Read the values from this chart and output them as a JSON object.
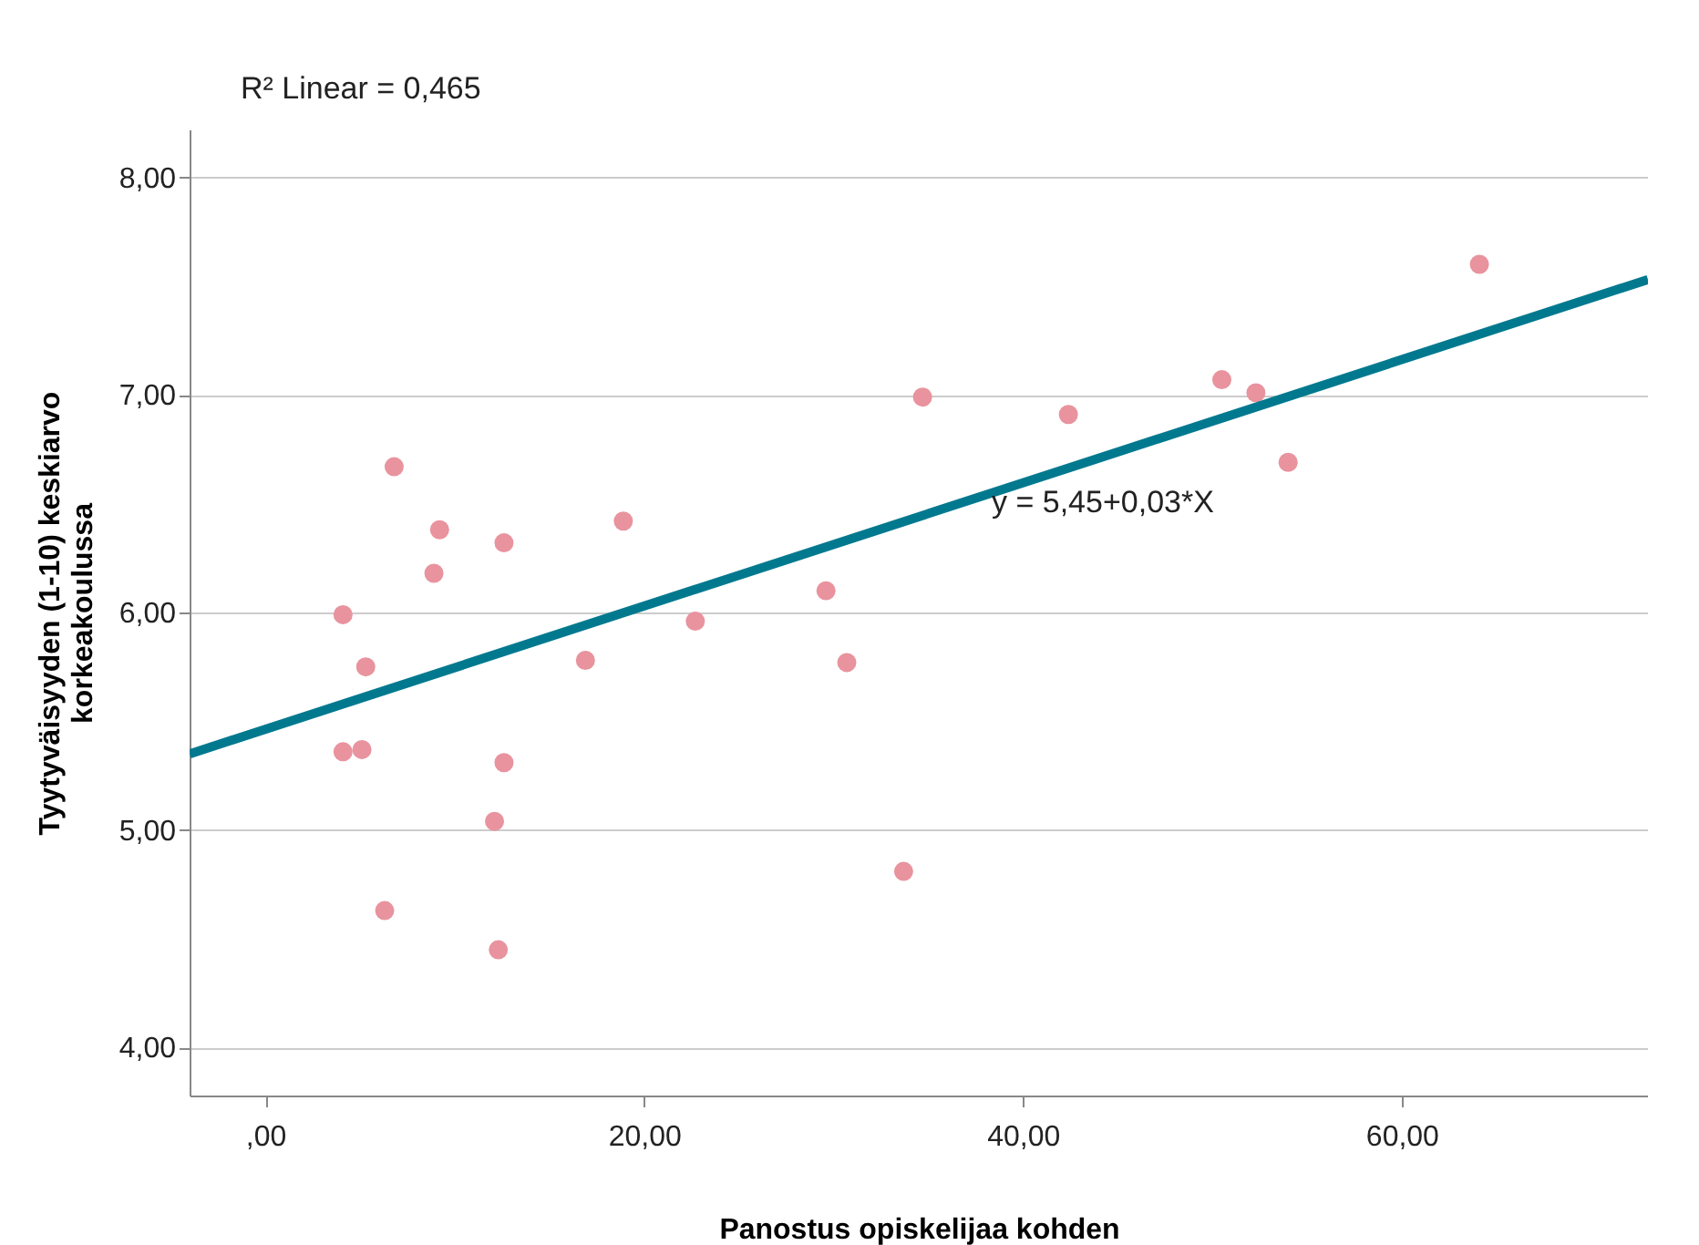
{
  "chart_data": {
    "type": "scatter",
    "xlabel": "Panostus opiskelijaa kohden",
    "ylabel": "Tyytyväisyyden (1-10) keskiarvo korkeakoulussa",
    "xlim": [
      -4,
      73
    ],
    "ylim": [
      3.78,
      8.22
    ],
    "xticks": [
      {
        "value": 0,
        "label": ",00"
      },
      {
        "value": 20,
        "label": "20,00"
      },
      {
        "value": 40,
        "label": "40,00"
      },
      {
        "value": 60,
        "label": "60,00"
      }
    ],
    "yticks": [
      {
        "value": 4,
        "label": "4,00"
      },
      {
        "value": 5,
        "label": "5,00"
      },
      {
        "value": 6,
        "label": "6,00"
      },
      {
        "value": 7,
        "label": "7,00"
      },
      {
        "value": 8,
        "label": "8,00"
      }
    ],
    "grid": "y",
    "series": [
      {
        "color": "#e8939e",
        "marker": "circle",
        "x": [
          64.1,
          34.7,
          42.4,
          50.5,
          52.3,
          54.0,
          29.6,
          30.7,
          33.7,
          22.7,
          18.9,
          16.9,
          12.6,
          12.6,
          12.1,
          12.3,
          9.2,
          8.9,
          6.8,
          6.3,
          5.3,
          5.1,
          4.1,
          4.1
        ],
        "values": [
          7.6,
          6.99,
          6.91,
          7.07,
          7.01,
          6.69,
          6.1,
          5.77,
          4.81,
          5.96,
          6.42,
          5.78,
          6.32,
          5.31,
          5.04,
          4.45,
          6.38,
          6.18,
          6.67,
          4.63,
          5.75,
          5.37,
          5.99,
          5.36
        ]
      },
      {
        "type": "line",
        "color": "#00798f",
        "x": [
          -4,
          73
        ],
        "values": [
          5.35,
          7.53
        ]
      }
    ],
    "annotations": [
      "R² Linear = 0,465",
      "y = 5,45+0,03*X"
    ]
  }
}
